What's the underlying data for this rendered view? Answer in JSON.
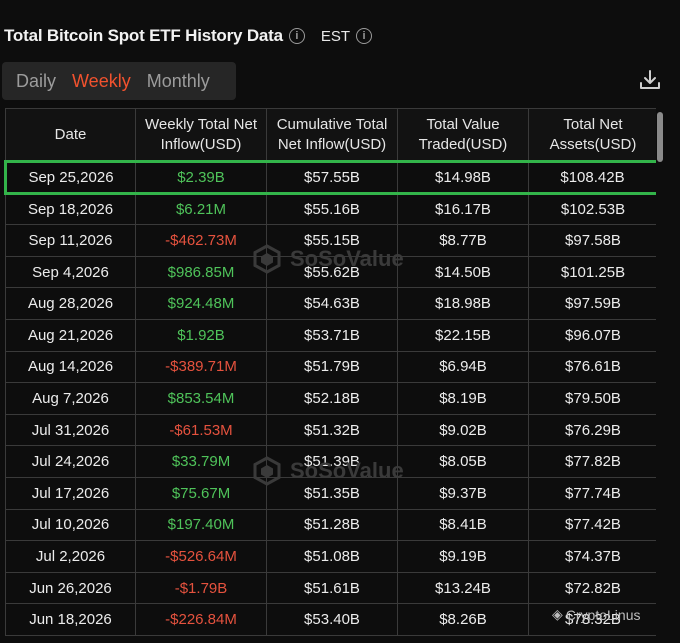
{
  "header": {
    "title": "Total Bitcoin Spot ETF History Data",
    "timezone": "EST"
  },
  "tabs": [
    {
      "label": "Daily",
      "active": false
    },
    {
      "label": "Weekly",
      "active": true
    },
    {
      "label": "Monthly",
      "active": false
    }
  ],
  "table": {
    "columns": [
      [
        "Date"
      ],
      [
        "Weekly Total Net",
        "Inflow(USD)"
      ],
      [
        "Cumulative Total",
        "Net Inflow(USD)"
      ],
      [
        "Total Value",
        "Traded(USD)"
      ],
      [
        "Total Net",
        "Assets(USD)"
      ]
    ],
    "rows": [
      {
        "date": "Sep 25,2026",
        "inflow": "$2.39B",
        "cumulative": "$57.55B",
        "traded": "$14.98B",
        "assets": "$108.42B",
        "highlighted": true
      },
      {
        "date": "Sep 18,2026",
        "inflow": "$6.21M",
        "cumulative": "$55.16B",
        "traded": "$16.17B",
        "assets": "$102.53B"
      },
      {
        "date": "Sep 11,2026",
        "inflow": "-$462.73M",
        "cumulative": "$55.15B",
        "traded": "$8.77B",
        "assets": "$97.58B"
      },
      {
        "date": "Sep 4,2026",
        "inflow": "$986.85M",
        "cumulative": "$55.62B",
        "traded": "$14.50B",
        "assets": "$101.25B"
      },
      {
        "date": "Aug 28,2026",
        "inflow": "$924.48M",
        "cumulative": "$54.63B",
        "traded": "$18.98B",
        "assets": "$97.59B"
      },
      {
        "date": "Aug 21,2026",
        "inflow": "$1.92B",
        "cumulative": "$53.71B",
        "traded": "$22.15B",
        "assets": "$96.07B"
      },
      {
        "date": "Aug 14,2026",
        "inflow": "-$389.71M",
        "cumulative": "$51.79B",
        "traded": "$6.94B",
        "assets": "$76.61B"
      },
      {
        "date": "Aug 7,2026",
        "inflow": "$853.54M",
        "cumulative": "$52.18B",
        "traded": "$8.19B",
        "assets": "$79.50B"
      },
      {
        "date": "Jul 31,2026",
        "inflow": "-$61.53M",
        "cumulative": "$51.32B",
        "traded": "$9.02B",
        "assets": "$76.29B"
      },
      {
        "date": "Jul 24,2026",
        "inflow": "$33.79M",
        "cumulative": "$51.39B",
        "traded": "$8.05B",
        "assets": "$77.82B"
      },
      {
        "date": "Jul 17,2026",
        "inflow": "$75.67M",
        "cumulative": "$51.35B",
        "traded": "$9.37B",
        "assets": "$77.74B"
      },
      {
        "date": "Jul 10,2026",
        "inflow": "$197.40M",
        "cumulative": "$51.28B",
        "traded": "$8.41B",
        "assets": "$77.42B"
      },
      {
        "date": "Jul 2,2026",
        "inflow": "-$526.64M",
        "cumulative": "$51.08B",
        "traded": "$9.19B",
        "assets": "$74.37B"
      },
      {
        "date": "Jun 26,2026",
        "inflow": "-$1.79B",
        "cumulative": "$51.61B",
        "traded": "$13.24B",
        "assets": "$72.82B"
      },
      {
        "date": "Jun 18,2026",
        "inflow": "-$226.84M",
        "cumulative": "$53.40B",
        "traded": "$8.26B",
        "assets": "$78.32B"
      }
    ]
  },
  "watermark": "SoSoValue",
  "credit": "CryptoLinus",
  "colors": {
    "accent": "#f2522e",
    "positive": "#4fc35a",
    "negative": "#e5523e",
    "highlight": "#33b44a"
  },
  "icons": {
    "info": "info-icon",
    "download": "download-icon",
    "watermark": "sosovalue-logo-icon"
  }
}
